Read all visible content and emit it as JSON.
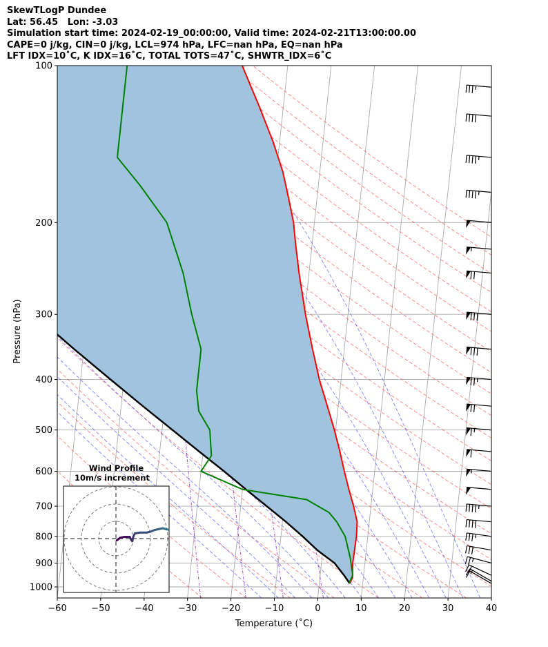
{
  "header": {
    "line1": "SkewTLogP Dundee",
    "line2": "Lat: 56.45   Lon: -3.03",
    "line3": "Simulation start time: 2024-02-19_00:00:00, Valid time: 2024-02-21T13:00:00.00",
    "line4": "CAPE=0 j/kg, CIN=0 j/kg, LCL=974 hPa, LFC=nan hPa, EQ=nan hPa",
    "line5": "LFT IDX=10˚C, K IDX=16˚C, TOTAL TOTS=47˚C, SHWTR_IDX=6˚C"
  },
  "chart_data": {
    "type": "line",
    "subtype": "skew-t log-p",
    "xlabel": "Temperature (˚C)",
    "ylabel": "Pressure (hPa)",
    "xlim": [
      -60,
      40
    ],
    "ylim": [
      1050,
      100
    ],
    "y_scale": "log",
    "x_ticks": [
      -60,
      -50,
      -40,
      -30,
      -20,
      -10,
      0,
      10,
      20,
      30,
      40
    ],
    "x_tick_labels": [
      "−60",
      "−50",
      "−40",
      "−30",
      "−20",
      "−10",
      "0",
      "10",
      "20",
      "30",
      "40"
    ],
    "y_ticks": [
      1000,
      900,
      800,
      700,
      600,
      500,
      400,
      300,
      200,
      100
    ],
    "y_tick_labels": [
      "1000",
      "900",
      "800",
      "700",
      "600",
      "500",
      "400",
      "300",
      "200",
      "100"
    ],
    "grid": true,
    "colors": {
      "temperature": "#ff0000",
      "dewpoint": "#008000",
      "parcel": "#000000",
      "fill": "#a0c4de",
      "dry_adiabats": "#ff4040",
      "moist_adiabats": "#4040ff",
      "mixing_ratio": "#9933cc",
      "isotherms": "#aaaaaa"
    },
    "series": [
      {
        "id": "temperature",
        "values": [
          [
            7.0,
            985
          ],
          [
            7.5,
            960
          ],
          [
            7.2,
            900
          ],
          [
            7.3,
            850
          ],
          [
            7.4,
            800
          ],
          [
            7.2,
            750
          ],
          [
            6.0,
            700
          ],
          [
            4.5,
            650
          ],
          [
            3.0,
            600
          ],
          [
            1.5,
            550
          ],
          [
            -0.3,
            500
          ],
          [
            -2.5,
            450
          ],
          [
            -5.0,
            400
          ],
          [
            -7.3,
            350
          ],
          [
            -9.8,
            300
          ],
          [
            -12.3,
            250
          ],
          [
            -13.8,
            220
          ],
          [
            -14.8,
            200
          ],
          [
            -16.5,
            180
          ],
          [
            -18.5,
            160
          ],
          [
            -21.5,
            140
          ],
          [
            -25.5,
            120
          ],
          [
            -30.5,
            100
          ]
        ]
      },
      {
        "id": "dewpoint",
        "values": [
          [
            6.8,
            985
          ],
          [
            7.5,
            950
          ],
          [
            6.5,
            880
          ],
          [
            4.8,
            800
          ],
          [
            2.5,
            750
          ],
          [
            0.5,
            720
          ],
          [
            -5,
            680
          ],
          [
            -20,
            650
          ],
          [
            -30,
            600
          ],
          [
            -28,
            560
          ],
          [
            -29,
            500
          ],
          [
            -32,
            460
          ],
          [
            -33,
            420
          ],
          [
            -33,
            350
          ],
          [
            -36,
            300
          ],
          [
            -39,
            250
          ],
          [
            -44,
            200
          ],
          [
            -51,
            170
          ],
          [
            -57,
            150
          ],
          [
            -57,
            130
          ],
          [
            -57,
            100
          ]
        ]
      },
      {
        "id": "parcel",
        "values": [
          [
            7.0,
            985
          ],
          [
            5.5,
            950
          ],
          [
            3.0,
            900
          ],
          [
            -1.3,
            850
          ],
          [
            -5.0,
            800
          ],
          [
            -9.2,
            750
          ],
          [
            -14.0,
            700
          ],
          [
            -19.2,
            650
          ],
          [
            -24.7,
            600
          ],
          [
            -30.9,
            550
          ],
          [
            -37.6,
            500
          ],
          [
            -45.0,
            450
          ],
          [
            -53.1,
            400
          ],
          [
            -62.2,
            350
          ],
          [
            -72.3,
            300
          ],
          [
            -84.0,
            250
          ],
          [
            -97.9,
            200
          ],
          [
            -104.3,
            180
          ],
          [
            -111.5,
            160
          ],
          [
            -119.9,
            140
          ],
          [
            -129.6,
            120
          ],
          [
            -141.4,
            100
          ]
        ]
      }
    ],
    "wind_barbs": {
      "pressures": [
        985,
        975,
        950,
        900,
        850,
        800,
        750,
        700,
        650,
        600,
        550,
        500,
        450,
        400,
        350,
        300,
        250,
        225,
        200,
        175,
        150,
        125,
        110
      ],
      "direction_deg": [
        240,
        240,
        245,
        255,
        260,
        262,
        265,
        265,
        265,
        265,
        265,
        265,
        265,
        265,
        265,
        265,
        265,
        265,
        265,
        265,
        265,
        265,
        265
      ],
      "speed_kt": [
        10,
        15,
        20,
        25,
        30,
        35,
        40,
        45,
        50,
        55,
        60,
        65,
        70,
        75,
        80,
        80,
        70,
        55,
        50,
        45,
        45,
        40,
        35
      ]
    },
    "inset": {
      "title": "Wind Profile",
      "subtitle": "10m/s increment",
      "rings_ms": [
        10,
        20,
        30
      ],
      "hodograph_uv": [
        [
          1,
          -2
        ],
        [
          5,
          1
        ],
        [
          10,
          2
        ],
        [
          14,
          2
        ],
        [
          16,
          2
        ],
        [
          17,
          0
        ],
        [
          18,
          -2
        ],
        [
          19,
          -3
        ],
        [
          20,
          2
        ],
        [
          22,
          6
        ],
        [
          28,
          7
        ],
        [
          36,
          7
        ],
        [
          40,
          8
        ],
        [
          45,
          10
        ],
        [
          50,
          11
        ],
        [
          54,
          12
        ],
        [
          58,
          11
        ],
        [
          62,
          10
        ]
      ]
    }
  }
}
